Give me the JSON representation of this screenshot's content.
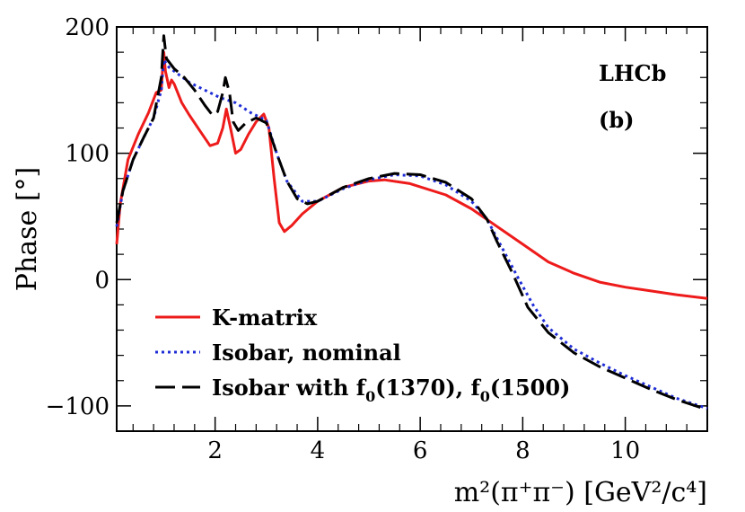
{
  "chart_data": {
    "type": "line",
    "title": "",
    "xlabel": "m²(π⁺π⁻) [GeV²/c⁴]",
    "ylabel": "Phase [°]",
    "xlim": [
      0.08,
      11.6
    ],
    "ylim": [
      -120,
      200
    ],
    "grid": false,
    "x_ticks": [
      2,
      4,
      6,
      8,
      10
    ],
    "y_ticks": [
      -100,
      0,
      100,
      200
    ],
    "experiment_label": "LHCb",
    "panel_label": "(b)",
    "legend_position": "bottom-left",
    "series": [
      {
        "name": "K-matrix",
        "legend_label": "K-matrix",
        "color": "#ee1b1b",
        "style": "solid",
        "points": [
          [
            0.08,
            28
          ],
          [
            0.15,
            60
          ],
          [
            0.3,
            95
          ],
          [
            0.5,
            115
          ],
          [
            0.7,
            132
          ],
          [
            0.85,
            148
          ],
          [
            0.95,
            150
          ],
          [
            0.98,
            170
          ],
          [
            1.0,
            180
          ],
          [
            1.03,
            165
          ],
          [
            1.1,
            152
          ],
          [
            1.15,
            158
          ],
          [
            1.2,
            155
          ],
          [
            1.35,
            140
          ],
          [
            1.5,
            130
          ],
          [
            1.7,
            118
          ],
          [
            1.9,
            106
          ],
          [
            2.05,
            108
          ],
          [
            2.15,
            120
          ],
          [
            2.22,
            135
          ],
          [
            2.3,
            120
          ],
          [
            2.4,
            100
          ],
          [
            2.5,
            103
          ],
          [
            2.65,
            115
          ],
          [
            2.8,
            125
          ],
          [
            2.95,
            131
          ],
          [
            3.05,
            120
          ],
          [
            3.15,
            80
          ],
          [
            3.25,
            45
          ],
          [
            3.35,
            38
          ],
          [
            3.5,
            43
          ],
          [
            3.7,
            52
          ],
          [
            4.0,
            62
          ],
          [
            4.5,
            73
          ],
          [
            5.0,
            78
          ],
          [
            5.3,
            79
          ],
          [
            5.8,
            76
          ],
          [
            6.5,
            67
          ],
          [
            7.0,
            56
          ],
          [
            7.5,
            42
          ],
          [
            8.0,
            28
          ],
          [
            8.5,
            14
          ],
          [
            9.0,
            5
          ],
          [
            9.5,
            -2
          ],
          [
            10.0,
            -6
          ],
          [
            10.5,
            -9
          ],
          [
            11.0,
            -12
          ],
          [
            11.6,
            -15
          ]
        ]
      },
      {
        "name": "Isobar, nominal",
        "legend_label": "Isobar, nominal",
        "color": "#1f2dd6",
        "style": "dotted",
        "points": [
          [
            0.08,
            42
          ],
          [
            0.2,
            70
          ],
          [
            0.4,
            95
          ],
          [
            0.6,
            112
          ],
          [
            0.8,
            128
          ],
          [
            0.95,
            150
          ],
          [
            1.0,
            174
          ],
          [
            1.1,
            168
          ],
          [
            1.3,
            162
          ],
          [
            1.5,
            156
          ],
          [
            1.8,
            150
          ],
          [
            2.1,
            144
          ],
          [
            2.4,
            140
          ],
          [
            2.7,
            132
          ],
          [
            3.0,
            126
          ],
          [
            3.2,
            100
          ],
          [
            3.4,
            78
          ],
          [
            3.7,
            62
          ],
          [
            4.0,
            62
          ],
          [
            4.5,
            72
          ],
          [
            5.0,
            79
          ],
          [
            5.5,
            83
          ],
          [
            6.0,
            82
          ],
          [
            6.5,
            75
          ],
          [
            7.0,
            62
          ],
          [
            7.3,
            48
          ],
          [
            7.6,
            25
          ],
          [
            7.9,
            2
          ],
          [
            8.2,
            -20
          ],
          [
            8.5,
            -38
          ],
          [
            9.0,
            -55
          ],
          [
            9.5,
            -66
          ],
          [
            10.0,
            -76
          ],
          [
            10.5,
            -85
          ],
          [
            11.0,
            -94
          ],
          [
            11.6,
            -102
          ]
        ]
      },
      {
        "name": "Isobar with f0(1370), f0(1500)",
        "legend_label_parts": [
          "Isobar with f",
          "0",
          "(1370), f",
          "0",
          "(1500)"
        ],
        "color": "#000000",
        "style": "long-dash",
        "points": [
          [
            0.08,
            45
          ],
          [
            0.2,
            70
          ],
          [
            0.4,
            95
          ],
          [
            0.6,
            112
          ],
          [
            0.8,
            128
          ],
          [
            0.95,
            160
          ],
          [
            1.0,
            193
          ],
          [
            1.05,
            175
          ],
          [
            1.2,
            167
          ],
          [
            1.4,
            160
          ],
          [
            1.6,
            150
          ],
          [
            1.8,
            138
          ],
          [
            1.95,
            130
          ],
          [
            2.05,
            133
          ],
          [
            2.15,
            148
          ],
          [
            2.2,
            160
          ],
          [
            2.28,
            148
          ],
          [
            2.35,
            125
          ],
          [
            2.45,
            118
          ],
          [
            2.6,
            124
          ],
          [
            2.8,
            128
          ],
          [
            3.0,
            124
          ],
          [
            3.2,
            100
          ],
          [
            3.4,
            78
          ],
          [
            3.6,
            64
          ],
          [
            3.8,
            60
          ],
          [
            4.0,
            62
          ],
          [
            4.5,
            73
          ],
          [
            5.0,
            80
          ],
          [
            5.5,
            84
          ],
          [
            6.0,
            83
          ],
          [
            6.5,
            77
          ],
          [
            7.0,
            64
          ],
          [
            7.3,
            48
          ],
          [
            7.5,
            30
          ],
          [
            7.8,
            5
          ],
          [
            8.1,
            -22
          ],
          [
            8.5,
            -42
          ],
          [
            9.0,
            -58
          ],
          [
            9.5,
            -69
          ],
          [
            10.0,
            -78
          ],
          [
            10.5,
            -87
          ],
          [
            11.0,
            -95
          ],
          [
            11.6,
            -103
          ]
        ]
      }
    ]
  }
}
